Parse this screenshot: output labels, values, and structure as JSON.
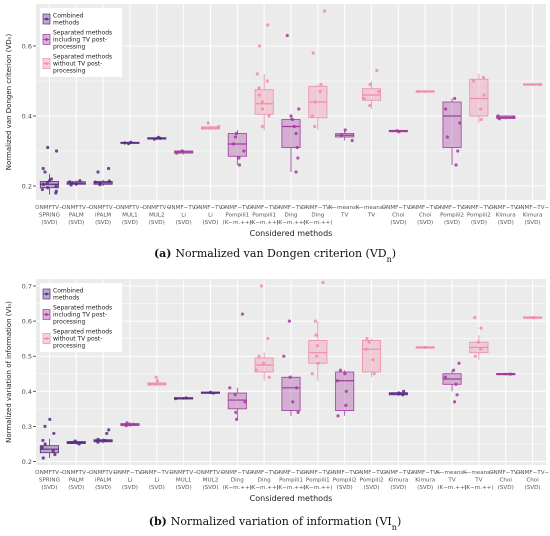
{
  "colors": {
    "combined": "#5b2c83",
    "including_tv": "#a23b9f",
    "without_tv": "#f08caa",
    "panel_bg": "#ebebeb",
    "grid": "#ffffff"
  },
  "chart_data": [
    {
      "type": "box",
      "ylabel": "Normalized van Dongen criterion (VDₙ)",
      "xlabel": "Considered methods",
      "yticks": [
        0.2,
        0.4,
        0.6
      ],
      "ylim": [
        0.16,
        0.72
      ],
      "grid": true,
      "legend_position": "top-left",
      "legend": [
        {
          "key": "combined",
          "label_lines": [
            "Combined",
            "methods"
          ]
        },
        {
          "key": "including_tv",
          "label_lines": [
            "Separated methods",
            "including TV post-",
            "processing"
          ]
        },
        {
          "key": "without_tv",
          "label_lines": [
            "Separated methods",
            "without TV post-",
            "processing"
          ]
        }
      ],
      "caption_prefix": "(a)",
      "caption_text": "Normalized van Dongen criterion (VD",
      "caption_sub": "n",
      "caption_suffix": ")",
      "categories": [
        {
          "label_lines": [
            "ONMFTV−",
            "SPRING",
            "(SVD)"
          ],
          "group": "combined",
          "q1": 0.195,
          "median": 0.205,
          "q3": 0.213,
          "wmin": 0.175,
          "wmax": 0.235,
          "points": [
            0.18,
            0.185,
            0.19,
            0.195,
            0.2,
            0.205,
            0.21,
            0.215,
            0.22,
            0.24,
            0.25,
            0.3,
            0.31
          ]
        },
        {
          "label_lines": [
            "ONMFTV−",
            "PALM",
            "(SVD)"
          ],
          "group": "combined",
          "q1": 0.205,
          "median": 0.208,
          "q3": 0.212,
          "wmin": 0.2,
          "wmax": 0.216,
          "points": [
            0.203,
            0.206,
            0.209,
            0.212,
            0.215
          ]
        },
        {
          "label_lines": [
            "ONMFTV−",
            "iPALM",
            "(SVD)"
          ],
          "group": "combined",
          "q1": 0.205,
          "median": 0.209,
          "q3": 0.213,
          "wmin": 0.2,
          "wmax": 0.218,
          "points": [
            0.204,
            0.208,
            0.211,
            0.214,
            0.24,
            0.25
          ]
        },
        {
          "label_lines": [
            "ONMFTV−",
            "MUL1",
            "(SVD)"
          ],
          "group": "combined",
          "q1": 0.322,
          "median": 0.323,
          "q3": 0.325,
          "wmin": 0.32,
          "wmax": 0.327,
          "points": [
            0.321,
            0.323,
            0.325
          ]
        },
        {
          "label_lines": [
            "ONMFTV−",
            "MUL2",
            "(SVD)"
          ],
          "group": "combined",
          "q1": 0.334,
          "median": 0.336,
          "q3": 0.338,
          "wmin": 0.332,
          "wmax": 0.34,
          "points": [
            0.334,
            0.336,
            0.339
          ]
        },
        {
          "label_lines": [
            "ONMF−TV−",
            "Li",
            "(SVD)"
          ],
          "group": "including_tv",
          "q1": 0.294,
          "median": 0.297,
          "q3": 0.3,
          "wmin": 0.29,
          "wmax": 0.303,
          "points": [
            0.294,
            0.297,
            0.3
          ]
        },
        {
          "label_lines": [
            "ONMF−TV−",
            "Li",
            "(SVD)"
          ],
          "group": "without_tv",
          "q1": 0.363,
          "median": 0.366,
          "q3": 0.369,
          "wmin": 0.36,
          "wmax": 0.372,
          "points": [
            0.365,
            0.37,
            0.38
          ]
        },
        {
          "label_lines": [
            "ONMF−TV−",
            "Pompili1",
            "(K−m.++)"
          ],
          "group": "including_tv",
          "q1": 0.285,
          "median": 0.32,
          "q3": 0.35,
          "wmin": 0.26,
          "wmax": 0.36,
          "points": [
            0.26,
            0.28,
            0.3,
            0.32,
            0.34,
            0.35
          ]
        },
        {
          "label_lines": [
            "ONMF−TV−",
            "Pompili1",
            "(K−m.++)"
          ],
          "group": "without_tv",
          "q1": 0.405,
          "median": 0.435,
          "q3": 0.475,
          "wmin": 0.36,
          "wmax": 0.52,
          "points": [
            0.37,
            0.4,
            0.42,
            0.44,
            0.46,
            0.48,
            0.5,
            0.52,
            0.6,
            0.66
          ]
        },
        {
          "label_lines": [
            "ONMF−TV−",
            "Ding",
            "(K−m.++)"
          ],
          "group": "including_tv",
          "q1": 0.31,
          "median": 0.37,
          "q3": 0.39,
          "wmin": 0.24,
          "wmax": 0.4,
          "points": [
            0.24,
            0.28,
            0.31,
            0.35,
            0.37,
            0.39,
            0.4,
            0.42,
            0.63
          ]
        },
        {
          "label_lines": [
            "ONMF−TV−",
            "Ding",
            "(K−m.++)"
          ],
          "group": "without_tv",
          "q1": 0.395,
          "median": 0.44,
          "q3": 0.485,
          "wmin": 0.36,
          "wmax": 0.49,
          "points": [
            0.37,
            0.4,
            0.44,
            0.47,
            0.49,
            0.58,
            0.7
          ]
        },
        {
          "label_lines": [
            "K−means−",
            "TV",
            ""
          ],
          "group": "including_tv",
          "q1": 0.34,
          "median": 0.345,
          "q3": 0.35,
          "wmin": 0.33,
          "wmax": 0.36,
          "points": [
            0.33,
            0.345,
            0.36
          ]
        },
        {
          "label_lines": [
            "K−means−",
            "TV",
            ""
          ],
          "group": "without_tv",
          "q1": 0.445,
          "median": 0.46,
          "q3": 0.478,
          "wmin": 0.42,
          "wmax": 0.5,
          "points": [
            0.43,
            0.45,
            0.47,
            0.49,
            0.53
          ]
        },
        {
          "label_lines": [
            "ONMF−TV−",
            "Choi",
            "(SVD)"
          ],
          "group": "including_tv",
          "q1": 0.355,
          "median": 0.357,
          "q3": 0.359,
          "wmin": 0.354,
          "wmax": 0.36,
          "points": [
            0.355,
            0.358
          ]
        },
        {
          "label_lines": [
            "ONMF−TV−",
            "Choi",
            "(SVD)"
          ],
          "group": "without_tv",
          "q1": 0.468,
          "median": 0.47,
          "q3": 0.472,
          "wmin": 0.466,
          "wmax": 0.474,
          "points": [
            0.47
          ]
        },
        {
          "label_lines": [
            "ONMF−TV−",
            "Pompili2",
            "(SVD)"
          ],
          "group": "including_tv",
          "q1": 0.31,
          "median": 0.4,
          "q3": 0.44,
          "wmin": 0.26,
          "wmax": 0.45,
          "points": [
            0.26,
            0.3,
            0.34,
            0.38,
            0.42,
            0.45
          ]
        },
        {
          "label_lines": [
            "ONMF−TV−",
            "Pompili2",
            "(SVD)"
          ],
          "group": "without_tv",
          "q1": 0.4,
          "median": 0.45,
          "q3": 0.505,
          "wmin": 0.38,
          "wmax": 0.52,
          "points": [
            0.39,
            0.42,
            0.46,
            0.5,
            0.51
          ]
        },
        {
          "label_lines": [
            "ONMF−TV−",
            "Kimura",
            "(SVD)"
          ],
          "group": "including_tv",
          "q1": 0.393,
          "median": 0.396,
          "q3": 0.4,
          "wmin": 0.39,
          "wmax": 0.402,
          "points": [
            0.392,
            0.396,
            0.4
          ]
        },
        {
          "label_lines": [
            "ONMF−TV−",
            "Kimura",
            "(SVD)"
          ],
          "group": "without_tv",
          "q1": 0.488,
          "median": 0.49,
          "q3": 0.492,
          "wmin": 0.486,
          "wmax": 0.494,
          "points": [
            0.49
          ]
        }
      ]
    },
    {
      "type": "box",
      "ylabel": "Normalized variation of information (VIₙ)",
      "xlabel": "Considered methods",
      "yticks": [
        0.2,
        0.3,
        0.4,
        0.5,
        0.6,
        0.7
      ],
      "ylim": [
        0.19,
        0.72
      ],
      "grid": true,
      "legend_position": "top-left",
      "legend": [
        {
          "key": "combined",
          "label_lines": [
            "Combined",
            "methods"
          ]
        },
        {
          "key": "including_tv",
          "label_lines": [
            "Separated methods",
            "including TV post-",
            "processing"
          ]
        },
        {
          "key": "without_tv",
          "label_lines": [
            "Separated methods",
            "without TV post-",
            "processing"
          ]
        }
      ],
      "caption_prefix": "(b)",
      "caption_text": "Normalized variation of information (VI",
      "caption_sub": "n",
      "caption_suffix": ")",
      "categories": [
        {
          "label_lines": [
            "ONMFTV−",
            "SPRING",
            "(SVD)"
          ],
          "group": "combined",
          "q1": 0.225,
          "median": 0.235,
          "q3": 0.245,
          "wmin": 0.21,
          "wmax": 0.265,
          "points": [
            0.21,
            0.22,
            0.23,
            0.24,
            0.25,
            0.26,
            0.28,
            0.3,
            0.32
          ]
        },
        {
          "label_lines": [
            "ONMFTV−",
            "PALM",
            "(SVD)"
          ],
          "group": "combined",
          "q1": 0.251,
          "median": 0.254,
          "q3": 0.257,
          "wmin": 0.248,
          "wmax": 0.262,
          "points": [
            0.25,
            0.254,
            0.258
          ]
        },
        {
          "label_lines": [
            "ONMFTV−",
            "iPALM",
            "(SVD)"
          ],
          "group": "combined",
          "q1": 0.256,
          "median": 0.259,
          "q3": 0.262,
          "wmin": 0.252,
          "wmax": 0.266,
          "points": [
            0.255,
            0.26,
            0.263,
            0.28,
            0.29
          ]
        },
        {
          "label_lines": [
            "ONMF−TV−",
            "Li",
            "(SVD)"
          ],
          "group": "including_tv",
          "q1": 0.302,
          "median": 0.305,
          "q3": 0.308,
          "wmin": 0.298,
          "wmax": 0.312,
          "points": [
            0.302,
            0.306,
            0.31
          ]
        },
        {
          "label_lines": [
            "ONMF−TV−",
            "Li",
            "(SVD)"
          ],
          "group": "without_tv",
          "q1": 0.418,
          "median": 0.421,
          "q3": 0.424,
          "wmin": 0.415,
          "wmax": 0.428,
          "points": [
            0.42,
            0.43,
            0.44
          ]
        },
        {
          "label_lines": [
            "ONMFTV−",
            "MUL1",
            "(SVD)"
          ],
          "group": "combined",
          "q1": 0.378,
          "median": 0.38,
          "q3": 0.382,
          "wmin": 0.376,
          "wmax": 0.384,
          "points": [
            0.379,
            0.381
          ]
        },
        {
          "label_lines": [
            "ONMFTV−",
            "MUL2",
            "(SVD)"
          ],
          "group": "combined",
          "q1": 0.394,
          "median": 0.396,
          "q3": 0.398,
          "wmin": 0.392,
          "wmax": 0.4,
          "points": [
            0.395,
            0.397
          ]
        },
        {
          "label_lines": [
            "ONMF−TV−",
            "Ding",
            "(K−m.++)"
          ],
          "group": "including_tv",
          "q1": 0.35,
          "median": 0.375,
          "q3": 0.395,
          "wmin": 0.32,
          "wmax": 0.41,
          "points": [
            0.32,
            0.34,
            0.37,
            0.39,
            0.41,
            0.62
          ]
        },
        {
          "label_lines": [
            "ONMF−TV−",
            "Ding",
            "(K−m.++)"
          ],
          "group": "without_tv",
          "q1": 0.455,
          "median": 0.475,
          "q3": 0.495,
          "wmin": 0.43,
          "wmax": 0.51,
          "points": [
            0.44,
            0.46,
            0.48,
            0.5,
            0.55,
            0.7
          ]
        },
        {
          "label_lines": [
            "ONMF−TV−",
            "Pompili1",
            "(K−m.++)"
          ],
          "group": "including_tv",
          "q1": 0.345,
          "median": 0.41,
          "q3": 0.44,
          "wmin": 0.33,
          "wmax": 0.445,
          "points": [
            0.34,
            0.37,
            0.41,
            0.44,
            0.5,
            0.6
          ]
        },
        {
          "label_lines": [
            "ONMF−TV−",
            "Pompili1",
            "(K−m.++)"
          ],
          "group": "without_tv",
          "q1": 0.48,
          "median": 0.51,
          "q3": 0.545,
          "wmin": 0.43,
          "wmax": 0.6,
          "points": [
            0.45,
            0.48,
            0.5,
            0.53,
            0.56,
            0.6,
            0.71
          ]
        },
        {
          "label_lines": [
            "ONMF−TV−",
            "Pompili2",
            "(SVD)"
          ],
          "group": "including_tv",
          "q1": 0.345,
          "median": 0.43,
          "q3": 0.455,
          "wmin": 0.33,
          "wmax": 0.46,
          "points": [
            0.33,
            0.36,
            0.4,
            0.43,
            0.45,
            0.46
          ]
        },
        {
          "label_lines": [
            "ONMF−TV−",
            "Pompili2",
            "(SVD)"
          ],
          "group": "without_tv",
          "q1": 0.455,
          "median": 0.52,
          "q3": 0.545,
          "wmin": 0.44,
          "wmax": 0.55,
          "points": [
            0.45,
            0.49,
            0.52,
            0.54,
            0.55
          ]
        },
        {
          "label_lines": [
            "ONMF−TV−",
            "Kimura",
            "(SVD)"
          ],
          "group": "combined",
          "q1": 0.39,
          "median": 0.393,
          "q3": 0.396,
          "wmin": 0.386,
          "wmax": 0.4,
          "points": [
            0.39,
            0.395,
            0.4
          ]
        },
        {
          "label_lines": [
            "ONMF−TV−",
            "Kimura",
            "(SVD)"
          ],
          "group": "without_tv",
          "q1": 0.523,
          "median": 0.525,
          "q3": 0.527,
          "wmin": 0.521,
          "wmax": 0.529,
          "points": [
            0.525
          ]
        },
        {
          "label_lines": [
            "K−means−",
            "TV",
            "(K−m.++)"
          ],
          "group": "including_tv",
          "q1": 0.42,
          "median": 0.435,
          "q3": 0.45,
          "wmin": 0.4,
          "wmax": 0.46,
          "points": [
            0.37,
            0.39,
            0.42,
            0.44,
            0.46,
            0.48
          ]
        },
        {
          "label_lines": [
            "K−means−",
            "TV",
            "(K−m.++)"
          ],
          "group": "without_tv",
          "q1": 0.51,
          "median": 0.525,
          "q3": 0.54,
          "wmin": 0.49,
          "wmax": 0.56,
          "points": [
            0.5,
            0.52,
            0.54,
            0.58,
            0.61
          ]
        },
        {
          "label_lines": [
            "ONMF−TV−",
            "Choi",
            "(SVD)"
          ],
          "group": "including_tv",
          "q1": 0.447,
          "median": 0.449,
          "q3": 0.451,
          "wmin": 0.445,
          "wmax": 0.453,
          "points": [
            0.449
          ]
        },
        {
          "label_lines": [
            "ONMF−TV−",
            "Choi",
            "(SVD)"
          ],
          "group": "without_tv",
          "q1": 0.608,
          "median": 0.61,
          "q3": 0.612,
          "wmin": 0.606,
          "wmax": 0.614,
          "points": [
            0.61
          ]
        }
      ]
    }
  ]
}
